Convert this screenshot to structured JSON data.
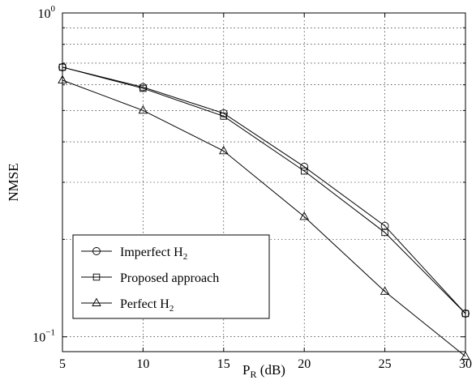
{
  "chart_data": {
    "type": "line",
    "xlabel": "P",
    "xlabel_sub": "R",
    "xlabel_unit": " (dB)",
    "ylabel": "NMSE",
    "y_scale": "log",
    "xlim": [
      5,
      30
    ],
    "ylim": [
      0.09,
      1
    ],
    "grid": true,
    "legend_position": "bottom-left",
    "x": [
      5,
      10,
      15,
      20,
      25,
      30
    ],
    "x_ticks": [
      {
        "value": 5,
        "label": "5"
      },
      {
        "value": 10,
        "label": "10"
      },
      {
        "value": 15,
        "label": "15"
      },
      {
        "value": 20,
        "label": "20"
      },
      {
        "value": 25,
        "label": "25"
      },
      {
        "value": 30,
        "label": "30"
      }
    ],
    "y_ticks": [
      {
        "value": 1,
        "base": "10",
        "exp": "0"
      },
      {
        "value": 0.1,
        "base": "10",
        "exp": "−1"
      }
    ],
    "series": [
      {
        "name": "Imperfect H",
        "name_sub": "2",
        "marker": "circle",
        "values": [
          0.68,
          0.59,
          0.49,
          0.335,
          0.22,
          0.118
        ]
      },
      {
        "name": "Proposed approach",
        "name_sub": "",
        "marker": "square",
        "values": [
          0.68,
          0.585,
          0.48,
          0.325,
          0.21,
          0.118
        ]
      },
      {
        "name": "Perfect H",
        "name_sub": "2",
        "marker": "triangle",
        "values": [
          0.62,
          0.5,
          0.375,
          0.235,
          0.138,
          0.087
        ]
      }
    ]
  }
}
